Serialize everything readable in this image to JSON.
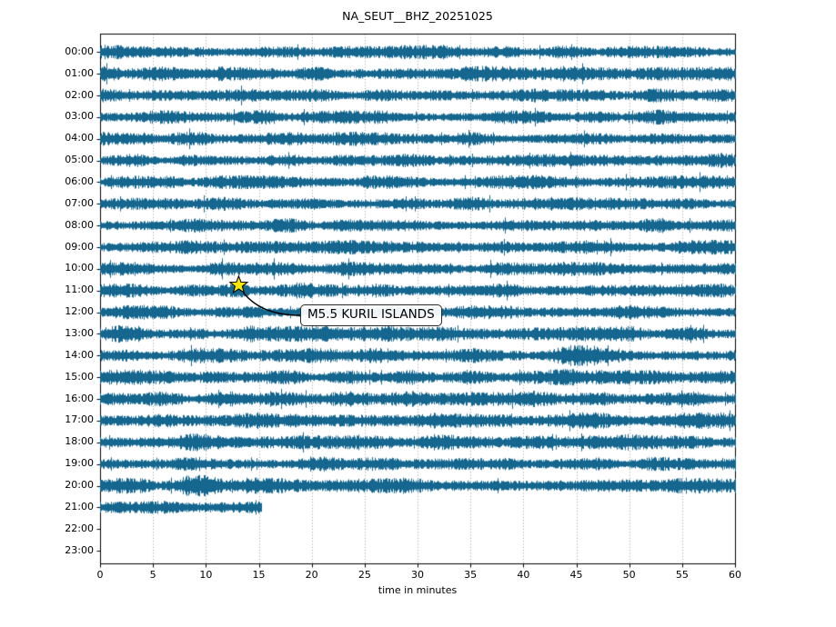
{
  "chart_data": {
    "type": "line",
    "variant": "helicorder-dayplot",
    "title": "NA_SEUT__BHZ_20251025",
    "x_label": "time in minutes",
    "x_range_minutes": [
      0,
      60
    ],
    "x_ticks": [
      "0",
      "5",
      "10",
      "15",
      "20",
      "25",
      "30",
      "35",
      "40",
      "45",
      "50",
      "55",
      "60"
    ],
    "grid": "vertical-dotted-every-5-min",
    "row_labels": [
      "00:00",
      "01:00",
      "02:00",
      "03:00",
      "04:00",
      "05:00",
      "06:00",
      "07:00",
      "08:00",
      "09:00",
      "10:00",
      "11:00",
      "12:00",
      "13:00",
      "14:00",
      "15:00",
      "16:00",
      "17:00",
      "18:00",
      "19:00",
      "20:00",
      "21:00",
      "22:00",
      "23:00"
    ],
    "rows": [
      {
        "label": "00:00",
        "start_min": 0,
        "end_min": 60,
        "amp": 7.0,
        "seed": 11,
        "bursts": []
      },
      {
        "label": "01:00",
        "start_min": 0,
        "end_min": 60,
        "amp": 7.5,
        "seed": 22,
        "bursts": [
          {
            "min": 20,
            "width": 1.2,
            "amp": 2
          }
        ]
      },
      {
        "label": "02:00",
        "start_min": 0,
        "end_min": 60,
        "amp": 6.6,
        "seed": 33,
        "bursts": []
      },
      {
        "label": "03:00",
        "start_min": 0,
        "end_min": 60,
        "amp": 7.0,
        "seed": 44,
        "bursts": [
          {
            "min": 16,
            "width": 0.8,
            "amp": 2.5
          }
        ]
      },
      {
        "label": "04:00",
        "start_min": 0,
        "end_min": 60,
        "amp": 7.0,
        "seed": 55,
        "bursts": []
      },
      {
        "label": "05:00",
        "start_min": 0,
        "end_min": 60,
        "amp": 6.6,
        "seed": 66,
        "bursts": []
      },
      {
        "label": "06:00",
        "start_min": 0,
        "end_min": 60,
        "amp": 7.0,
        "seed": 77,
        "bursts": []
      },
      {
        "label": "07:00",
        "start_min": 0,
        "end_min": 60,
        "amp": 7.0,
        "seed": 88,
        "bursts": []
      },
      {
        "label": "08:00",
        "start_min": 0,
        "end_min": 60,
        "amp": 7.4,
        "seed": 99,
        "bursts": []
      },
      {
        "label": "09:00",
        "start_min": 0,
        "end_min": 60,
        "amp": 7.0,
        "seed": 110,
        "bursts": []
      },
      {
        "label": "10:00",
        "start_min": 0,
        "end_min": 60,
        "amp": 7.0,
        "seed": 121,
        "bursts": []
      },
      {
        "label": "11:00",
        "start_min": 0,
        "end_min": 60,
        "amp": 7.0,
        "seed": 132,
        "bursts": [
          {
            "min": 13.2,
            "width": 1.0,
            "amp": 2.5
          },
          {
            "min": 19,
            "width": 0.8,
            "amp": 2
          }
        ]
      },
      {
        "label": "12:00",
        "start_min": 0,
        "end_min": 60,
        "amp": 7.0,
        "seed": 143,
        "bursts": []
      },
      {
        "label": "13:00",
        "start_min": 0,
        "end_min": 60,
        "amp": 7.8,
        "seed": 154,
        "bursts": [
          {
            "min": 1.5,
            "width": 2.0,
            "amp": 2.5
          }
        ]
      },
      {
        "label": "14:00",
        "start_min": 0,
        "end_min": 60,
        "amp": 7.5,
        "seed": 165,
        "bursts": [
          {
            "min": 45.5,
            "width": 1.5,
            "amp": 4.5
          }
        ]
      },
      {
        "label": "15:00",
        "start_min": 0,
        "end_min": 60,
        "amp": 7.9,
        "seed": 176,
        "bursts": [
          {
            "min": 11,
            "width": 1.0,
            "amp": 2
          }
        ]
      },
      {
        "label": "16:00",
        "start_min": 0,
        "end_min": 60,
        "amp": 7.5,
        "seed": 187,
        "bursts": []
      },
      {
        "label": "17:00",
        "start_min": 0,
        "end_min": 60,
        "amp": 7.9,
        "seed": 198,
        "bursts": [
          {
            "min": 44,
            "width": 3.0,
            "amp": 2
          }
        ]
      },
      {
        "label": "18:00",
        "start_min": 0,
        "end_min": 60,
        "amp": 8.3,
        "seed": 209,
        "bursts": []
      },
      {
        "label": "19:00",
        "start_min": 0,
        "end_min": 60,
        "amp": 7.5,
        "seed": 220,
        "bursts": []
      },
      {
        "label": "20:00",
        "start_min": 0,
        "end_min": 60,
        "amp": 7.9,
        "seed": 231,
        "bursts": [
          {
            "min": 9.5,
            "width": 1.5,
            "amp": 3.5
          }
        ]
      },
      {
        "label": "21:00",
        "start_min": 0,
        "end_min": 15.2,
        "amp": 7.5,
        "seed": 242,
        "bursts": []
      },
      {
        "label": "22:00",
        "start_min": null,
        "end_min": null,
        "amp": 0,
        "seed": 253,
        "bursts": []
      },
      {
        "label": "23:00",
        "start_min": null,
        "end_min": null,
        "amp": 0,
        "seed": 264,
        "bursts": []
      }
    ],
    "annotation": {
      "label": "M5.5 KURIL ISLANDS",
      "event_row": "11:00",
      "event_minute": 13.1
    }
  },
  "colors": {
    "trace": "#15678f",
    "grid": "#8f8f8f",
    "axis": "#000000",
    "star_fill": "#ffe800",
    "star_edge": "#000000",
    "connector": "#000000"
  }
}
